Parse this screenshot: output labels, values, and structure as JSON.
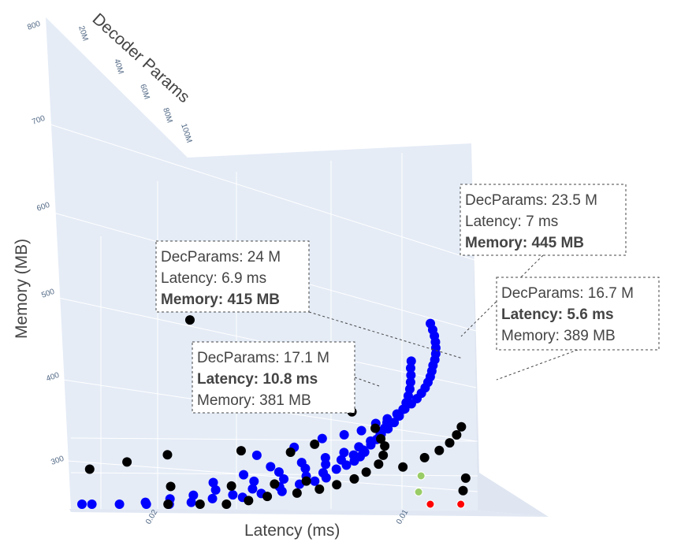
{
  "chart_data": {
    "type": "scatter",
    "subtype": "3d-scatter",
    "axes": {
      "x": {
        "title": "Latency (ms)",
        "ticks": [
          "0.02",
          "0.01"
        ]
      },
      "y": {
        "title": "Decoder Params",
        "ticks": [
          "20M",
          "40M",
          "60M",
          "80M",
          "100M"
        ]
      },
      "z": {
        "title": "Memory (MB)",
        "ticks": [
          "800",
          "700",
          "600",
          "500",
          "400",
          "300"
        ]
      }
    },
    "grid": true,
    "background_color": "#e5ecf6",
    "series": [
      {
        "color": "#0000ff",
        "points": [
          [
            1.3,
            3.0,
            470
          ],
          [
            1.5,
            3.2,
            490
          ],
          [
            1.7,
            3.5,
            510
          ],
          [
            1.9,
            3.8,
            520
          ],
          [
            2.1,
            4.2,
            530
          ],
          [
            2.3,
            4.5,
            545
          ],
          [
            2.5,
            4.9,
            555
          ],
          [
            2.7,
            5.3,
            565
          ],
          [
            2.9,
            5.8,
            575
          ],
          [
            3.1,
            6.3,
            585
          ],
          [
            3.3,
            6.8,
            595
          ],
          [
            3.5,
            7.4,
            605
          ],
          [
            3.7,
            8.0,
            615
          ],
          [
            3.9,
            8.7,
            625
          ],
          [
            4.1,
            9.4,
            635
          ],
          [
            4.3,
            10.2,
            645
          ],
          [
            4.5,
            11.0,
            655
          ],
          [
            4.8,
            12.0,
            665
          ],
          [
            5.1,
            13.1,
            675
          ],
          [
            5.4,
            14.3,
            685
          ],
          [
            5.7,
            15.5,
            695
          ],
          [
            6.0,
            16.8,
            705
          ],
          [
            6.3,
            18.2,
            715
          ],
          [
            6.6,
            19.7,
            725
          ],
          [
            1.4,
            5.0,
            450
          ],
          [
            1.6,
            5.6,
            462
          ],
          [
            1.8,
            6.2,
            474
          ],
          [
            2.0,
            6.8,
            486
          ],
          [
            2.2,
            7.4,
            498
          ],
          [
            2.4,
            8.1,
            510
          ],
          [
            2.6,
            8.8,
            522
          ],
          [
            2.8,
            9.5,
            534
          ],
          [
            3.0,
            10.3,
            546
          ],
          [
            3.2,
            11.1,
            558
          ],
          [
            3.4,
            12.0,
            570
          ],
          [
            3.6,
            12.9,
            582
          ],
          [
            3.8,
            13.9,
            594
          ],
          [
            4.0,
            14.9,
            606
          ],
          [
            4.2,
            16.0,
            618
          ],
          [
            4.4,
            17.1,
            630
          ],
          [
            4.6,
            18.3,
            642
          ],
          [
            4.9,
            19.6,
            654
          ],
          [
            1.3,
            7.0,
            430
          ],
          [
            1.5,
            7.8,
            440
          ],
          [
            1.7,
            8.6,
            450
          ],
          [
            1.9,
            9.4,
            460
          ],
          [
            2.1,
            10.3,
            470
          ],
          [
            2.3,
            11.2,
            480
          ],
          [
            2.5,
            12.2,
            490
          ],
          [
            2.7,
            13.2,
            500
          ],
          [
            2.9,
            14.3,
            510
          ],
          [
            3.1,
            15.4,
            520
          ],
          [
            3.3,
            16.6,
            530
          ],
          [
            3.5,
            17.8,
            540
          ],
          [
            1.2,
            9.0,
            410
          ],
          [
            1.4,
            10.0,
            418
          ],
          [
            1.6,
            11.0,
            426
          ],
          [
            1.8,
            12.0,
            434
          ],
          [
            2.0,
            13.1,
            442
          ],
          [
            2.2,
            14.2,
            450
          ],
          [
            2.4,
            15.4,
            458
          ],
          [
            2.6,
            16.6,
            466
          ],
          [
            2.8,
            17.9,
            474
          ],
          [
            3.0,
            19.2,
            482
          ],
          [
            1.25,
            12.0,
            395
          ],
          [
            1.45,
            13.2,
            402
          ],
          [
            1.65,
            14.4,
            409
          ],
          [
            1.85,
            15.7,
            416
          ],
          [
            2.05,
            17.0,
            423
          ],
          [
            2.25,
            18.4,
            430
          ],
          [
            1.2,
            15.0,
            380
          ],
          [
            1.4,
            16.4,
            386
          ],
          [
            1.6,
            17.8,
            392
          ],
          [
            1.8,
            19.3,
            398
          ],
          [
            1.15,
            18.0,
            368
          ],
          [
            1.35,
            19.6,
            374
          ],
          [
            1.55,
            21.2,
            380
          ],
          [
            1.1,
            21.0,
            356
          ],
          [
            1.3,
            22.8,
            362
          ],
          [
            1.05,
            24.0,
            345
          ],
          [
            1.25,
            26.0,
            350
          ],
          [
            1.0,
            27.0,
            335
          ],
          [
            1.2,
            29.2,
            340
          ],
          [
            1.0,
            30.0,
            326
          ]
        ]
      },
      {
        "color": "#000000",
        "points": [
          [
            6.5,
            95.0,
            700
          ],
          [
            5.8,
            90.0,
            650
          ],
          [
            7.5,
            70.0,
            610
          ],
          [
            6.2,
            55.0,
            560
          ],
          [
            5.5,
            40.0,
            540
          ],
          [
            4.8,
            30.0,
            520
          ],
          [
            4.2,
            25.0,
            505
          ],
          [
            3.8,
            21.0,
            495
          ],
          [
            3.4,
            18.0,
            480
          ],
          [
            3.0,
            15.0,
            465
          ],
          [
            2.6,
            13.0,
            450
          ],
          [
            2.3,
            11.0,
            437
          ],
          [
            2.0,
            9.0,
            425
          ],
          [
            1.8,
            8.0,
            415
          ],
          [
            1.6,
            7.0,
            405
          ],
          [
            1.4,
            6.0,
            395
          ],
          [
            1.3,
            5.5,
            385
          ],
          [
            1.2,
            5.0,
            375
          ],
          [
            1.1,
            4.5,
            365
          ],
          [
            1.0,
            4.0,
            355
          ],
          [
            1.6,
            4.2,
            430
          ],
          [
            1.4,
            3.8,
            420
          ],
          [
            1.2,
            3.5,
            410
          ],
          [
            1.0,
            3.2,
            400
          ],
          [
            2.8,
            5.0,
            470
          ],
          [
            3.4,
            5.5,
            490
          ],
          [
            4.0,
            6.0,
            505
          ],
          [
            4.6,
            6.5,
            520
          ],
          [
            5.2,
            7.2,
            535
          ],
          [
            5.8,
            8.0,
            550
          ],
          [
            8.0,
            12.0,
            455
          ],
          [
            9.5,
            15.0,
            430
          ],
          [
            1.9,
            20.0,
            470
          ],
          [
            2.4,
            25.0,
            485
          ],
          [
            1.7,
            28.0,
            460
          ],
          [
            1.3,
            30.0,
            440
          ],
          [
            1.15,
            31.0,
            420
          ],
          [
            1.05,
            33.0,
            400
          ]
        ]
      },
      {
        "color": "#99cc66",
        "points": [
          [
            6.9,
            24.0,
            415
          ],
          [
            7.0,
            23.5,
            445
          ]
        ]
      },
      {
        "color": "#ff0000",
        "points": [
          [
            10.8,
            17.1,
            381
          ],
          [
            5.6,
            16.7,
            389
          ]
        ]
      }
    ],
    "annotations": [
      {
        "point": [
          7.0,
          23.5,
          445
        ],
        "line1": "DecParams: 23.5 M",
        "line2": "Latency: 7 ms",
        "line3": "Memory: 445 MB",
        "highlight_line": 3,
        "highlight_color": "#5a8f2e"
      },
      {
        "point": [
          6.9,
          24.0,
          415
        ],
        "line1": "DecParams: 24 M",
        "line2": "Latency: 6.9 ms",
        "line3": "Memory: 415 MB",
        "highlight_line": 3,
        "highlight_color": "#5a8f2e"
      },
      {
        "point": [
          5.6,
          16.7,
          389
        ],
        "line1": "DecParams: 16.7 M",
        "line2": "Latency: 5.6 ms",
        "line3": "Memory: 389 MB",
        "highlight_line": 2,
        "highlight_color": "#ee0000"
      },
      {
        "point": [
          10.8,
          17.1,
          381
        ],
        "line1": "DecParams: 17.1 M",
        "line2": "Latency: 10.8 ms",
        "line3": "Memory: 381 MB",
        "highlight_line": 2,
        "highlight_color": "#ee0000"
      }
    ]
  }
}
